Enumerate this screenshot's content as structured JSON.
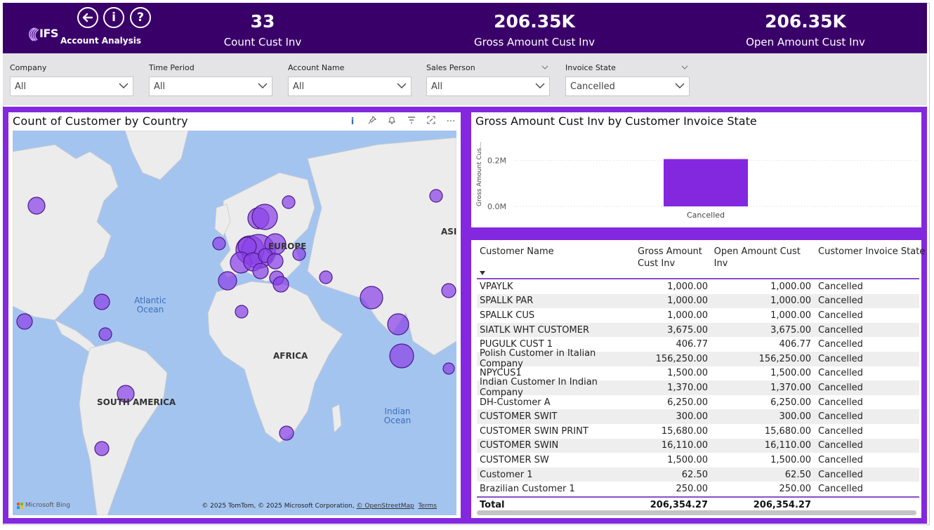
{
  "header": {
    "logo_text": "IFS",
    "app_title": "Account Analysis",
    "icons": [
      "back-arrow-icon",
      "info-icon",
      "help-icon"
    ],
    "kpis": [
      {
        "value": "33",
        "label": "Count Cust Inv"
      },
      {
        "value": "206.35K",
        "label": "Gross Amount Cust Inv"
      },
      {
        "value": "206.35K",
        "label": "Open Amount Cust Inv"
      }
    ],
    "colors": {
      "header_bg": "#3a0069",
      "accent": "#8428e0"
    }
  },
  "filters": [
    {
      "label": "Company",
      "value": "All"
    },
    {
      "label": "Time Period",
      "value": "All"
    },
    {
      "label": "Account Name",
      "value": "All"
    },
    {
      "label": "Sales Person",
      "value": "All"
    },
    {
      "label": "Invoice State",
      "value": "Cancelled"
    }
  ],
  "map": {
    "title": "Count of Customer by Country",
    "tools": [
      "info-icon",
      "pin-icon",
      "bell-icon",
      "filter-icon",
      "focus-icon",
      "more-icon"
    ],
    "continent_labels": [
      "EUROPE",
      "AFRICA",
      "SOUTH AMERICA",
      "ASIA"
    ],
    "ocean_labels": [
      "Atlantic Ocean",
      "Indian Ocean"
    ],
    "attribution": "© 2025 TomTom, © 2025 Microsoft Corporation,",
    "attribution_link": "© OpenStreetMap",
    "terms": "Terms",
    "bing": "Microsoft Bing"
  },
  "bar_chart": {
    "title": "Gross Amount Cust Inv by Customer Invoice State",
    "chart_data": {
      "type": "bar",
      "categories": [
        "Cancelled"
      ],
      "values": [
        206354.27
      ],
      "ylabel": "Gross Amount Cus...",
      "yticks": [
        "0.0M",
        "0.2M"
      ],
      "ylim": [
        0,
        300000
      ],
      "bar_color": "#8428e0"
    }
  },
  "table": {
    "headers": [
      "Customer Name",
      "Gross Amount Cust Inv",
      "Open Amount Cust Inv",
      "Customer Invoice State"
    ],
    "rows": [
      [
        "VPAYLK",
        "1,000.00",
        "1,000.00",
        "Cancelled"
      ],
      [
        "SPALLK PAR",
        "1,000.00",
        "1,000.00",
        "Cancelled"
      ],
      [
        "SPALLK CUS",
        "1,000.00",
        "1,000.00",
        "Cancelled"
      ],
      [
        "SIATLK WHT CUSTOMER",
        "3,675.00",
        "3,675.00",
        "Cancelled"
      ],
      [
        "PUGULK CUST 1",
        "406.77",
        "406.77",
        "Cancelled"
      ],
      [
        "Polish Customer in Italian Company",
        "156,250.00",
        "156,250.00",
        "Cancelled"
      ],
      [
        "NPYCUS1",
        "1,500.00",
        "1,500.00",
        "Cancelled"
      ],
      [
        "Indian Customer In Indian Company",
        "1,370.00",
        "1,370.00",
        "Cancelled"
      ],
      [
        "DH-Customer A",
        "6,250.00",
        "6,250.00",
        "Cancelled"
      ],
      [
        "CUSTOMER SWIT",
        "300.00",
        "300.00",
        "Cancelled"
      ],
      [
        "CUSTOMER SWIN PRINT",
        "15,680.00",
        "15,680.00",
        "Cancelled"
      ],
      [
        "CUSTOMER SWIN",
        "16,110.00",
        "16,110.00",
        "Cancelled"
      ],
      [
        "CUSTOMER SW",
        "1,500.00",
        "1,500.00",
        "Cancelled"
      ],
      [
        "Customer 1",
        "62.50",
        "62.50",
        "Cancelled"
      ],
      [
        "Brazilian Customer 1",
        "250.00",
        "250.00",
        "Cancelled"
      ]
    ],
    "total": [
      "Total",
      "206,354.27",
      "206,354.27",
      ""
    ]
  }
}
